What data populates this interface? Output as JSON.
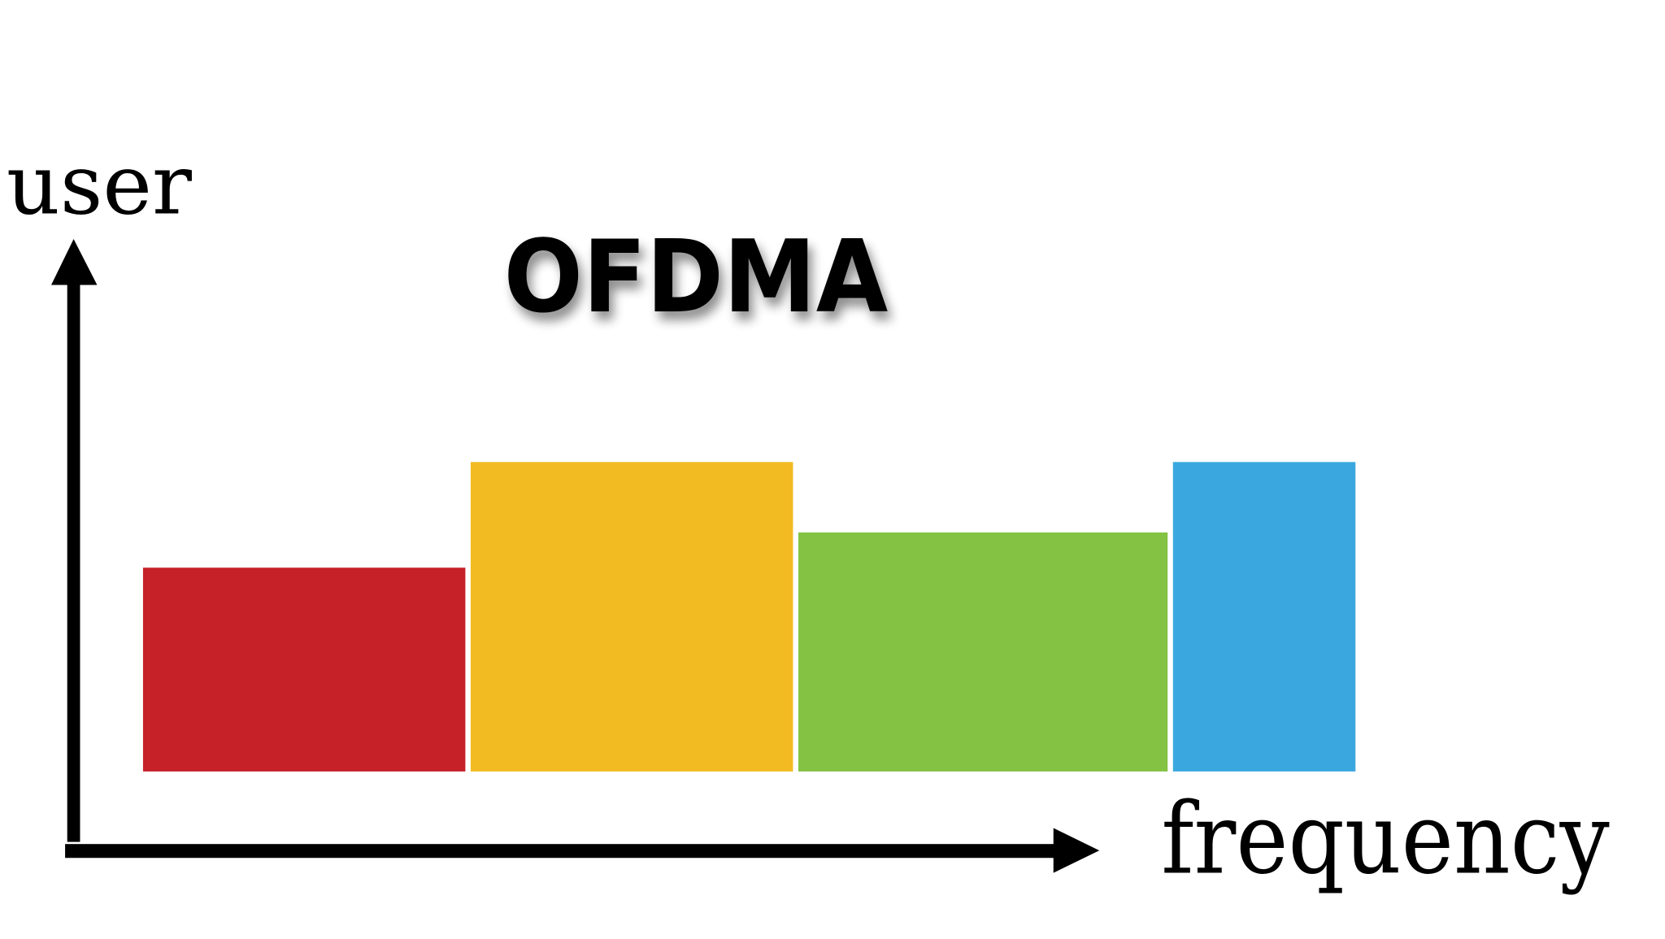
{
  "title": "OFDMA",
  "y_axis_label": "user",
  "x_axis_label": "frequency",
  "blocks": [
    {
      "color": "#c62128",
      "width": 302,
      "height": 191
    },
    {
      "color": "#f2bb22",
      "width": 302,
      "height": 290
    },
    {
      "color": "#83c243",
      "width": 346,
      "height": 224
    },
    {
      "color": "#3aa8df",
      "width": 171,
      "height": 290
    }
  ],
  "axis_color": "#000000"
}
